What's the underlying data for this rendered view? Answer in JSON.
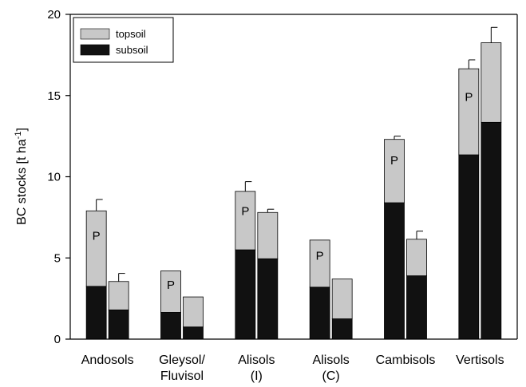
{
  "chart_data": {
    "type": "bar",
    "stacked": true,
    "ylabel": "BC stocks [t ha",
    "ylabel_sup": "-1",
    "ylabel_end": "]",
    "ylim": [
      0,
      20
    ],
    "yticks": [
      "0",
      "5",
      "10",
      "15",
      "20"
    ],
    "categories": [
      {
        "lines": [
          "Andosols"
        ]
      },
      {
        "lines": [
          "Gleysol/",
          "Fluvisol"
        ]
      },
      {
        "lines": [
          "Alisols",
          "(I)"
        ]
      },
      {
        "lines": [
          "Alisols",
          "(C)"
        ]
      },
      {
        "lines": [
          "Cambisols"
        ]
      },
      {
        "lines": [
          "Vertisols"
        ]
      }
    ],
    "series": [
      {
        "name": "subsoil",
        "color": "#111111"
      },
      {
        "name": "topsoil",
        "color": "#c8c8c8"
      }
    ],
    "bars": [
      {
        "category": 0,
        "subsoil": 3.25,
        "topsoil": 4.65,
        "total": 7.9,
        "err": 0.7,
        "label": "P"
      },
      {
        "category": 0,
        "subsoil": 1.8,
        "topsoil": 1.75,
        "total": 3.55,
        "err": 0.5,
        "label": ""
      },
      {
        "category": 1,
        "subsoil": 1.65,
        "topsoil": 2.55,
        "total": 4.2,
        "err": 0,
        "label": "P"
      },
      {
        "category": 1,
        "subsoil": 0.75,
        "topsoil": 1.85,
        "total": 2.6,
        "err": 0,
        "label": ""
      },
      {
        "category": 2,
        "subsoil": 5.5,
        "topsoil": 3.6,
        "total": 9.1,
        "err": 0.6,
        "label": "P"
      },
      {
        "category": 2,
        "subsoil": 4.95,
        "topsoil": 2.85,
        "total": 7.8,
        "err": 0.2,
        "label": ""
      },
      {
        "category": 3,
        "subsoil": 3.2,
        "topsoil": 2.9,
        "total": 6.1,
        "err": 0,
        "label": "P"
      },
      {
        "category": 3,
        "subsoil": 1.25,
        "topsoil": 2.45,
        "total": 3.7,
        "err": 0,
        "label": ""
      },
      {
        "category": 4,
        "subsoil": 8.4,
        "topsoil": 3.9,
        "total": 12.3,
        "err": 0.2,
        "label": "P"
      },
      {
        "category": 4,
        "subsoil": 3.9,
        "topsoil": 2.25,
        "total": 6.15,
        "err": 0.5,
        "label": ""
      },
      {
        "category": 5,
        "subsoil": 11.35,
        "topsoil": 5.3,
        "total": 16.65,
        "err": 0.55,
        "label": "P"
      },
      {
        "category": 5,
        "subsoil": 13.35,
        "topsoil": 4.9,
        "total": 18.25,
        "err": 0.95,
        "label": ""
      }
    ],
    "legend": {
      "position": "top-left",
      "entries": [
        "topsoil",
        "subsoil"
      ]
    },
    "grid": false
  }
}
